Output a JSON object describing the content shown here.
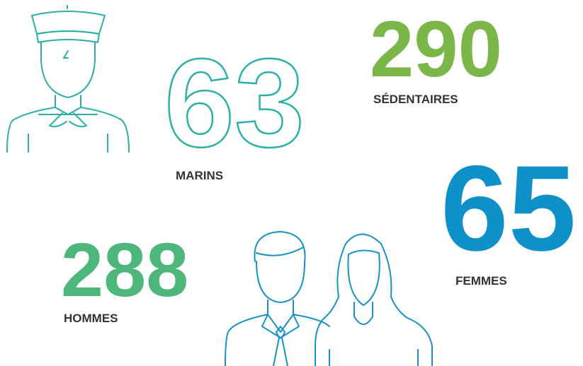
{
  "stats": [
    {
      "value": 63,
      "label": "MARINS"
    },
    {
      "value": 290,
      "label": "SÉDENTAIRES"
    },
    {
      "value": 65,
      "label": "FEMMES"
    },
    {
      "value": 288,
      "label": "HOMMES"
    }
  ]
}
